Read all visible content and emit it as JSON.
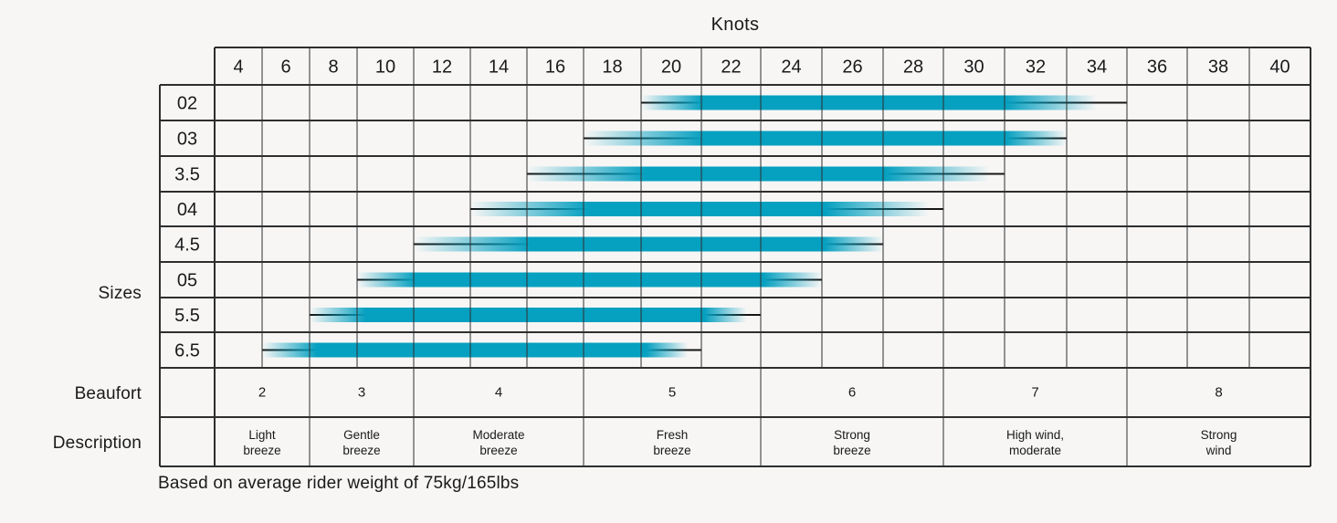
{
  "title": "Knots",
  "side_labels": {
    "sizes": "Sizes",
    "beaufort": "Beaufort",
    "description": "Description"
  },
  "footer_note": "Based on average rider weight of 75kg/165lbs",
  "colors": {
    "bar_teal": "#06a0c0",
    "range_line": "#161616",
    "grid_line": "#2e2e2e",
    "background": "#f7f6f5",
    "text": "#1a1a1a"
  },
  "chart_data": {
    "type": "bar",
    "subtype": "horizontal-range-table",
    "x_axis_title": "Knots",
    "x_tick_labels": [
      "4",
      "6",
      "8",
      "10",
      "12",
      "14",
      "16",
      "18",
      "20",
      "22",
      "24",
      "26",
      "28",
      "30",
      "32",
      "34",
      "36",
      "38",
      "40"
    ],
    "x_range_knots": [
      3,
      41
    ],
    "y_axis_title": "Sizes",
    "categories": [
      "02",
      "03",
      "3.5",
      "04",
      "4.5",
      "05",
      "5.5",
      "6.5"
    ],
    "series": [
      {
        "size": "02",
        "min_knots": 19,
        "max_knots": 35,
        "solid_from": 21,
        "solid_to": 31,
        "fade_to": 34
      },
      {
        "size": "03",
        "min_knots": 17,
        "max_knots": 33,
        "solid_from": 21,
        "solid_to": 31,
        "fade_to": 33
      },
      {
        "size": "3.5",
        "min_knots": 15,
        "max_knots": 31,
        "solid_from": 19,
        "solid_to": 27,
        "fade_to": 30.5
      },
      {
        "size": "04",
        "min_knots": 13,
        "max_knots": 29,
        "solid_from": 17,
        "solid_to": 25,
        "fade_to": 28.5
      },
      {
        "size": "4.5",
        "min_knots": 11,
        "max_knots": 27,
        "solid_from": 15,
        "solid_to": 25,
        "fade_to": 27
      },
      {
        "size": "05",
        "min_knots": 9,
        "max_knots": 25,
        "solid_from": 11,
        "solid_to": 23,
        "fade_to": 25
      },
      {
        "size": "5.5",
        "min_knots": 7,
        "max_knots": 23,
        "solid_from": 9,
        "solid_to": 21,
        "fade_to": 22.5
      },
      {
        "size": "6.5",
        "min_knots": 5,
        "max_knots": 21,
        "solid_from": 7,
        "solid_to": 19,
        "fade_to": 20.5
      }
    ],
    "beaufort_rows": [
      {
        "scale": "2",
        "description_lines": [
          "Light",
          "breeze"
        ],
        "span_cols": [
          4,
          6
        ]
      },
      {
        "scale": "3",
        "description_lines": [
          "Gentle",
          "breeze"
        ],
        "span_cols": [
          8,
          10
        ]
      },
      {
        "scale": "4",
        "description_lines": [
          "Moderate",
          "breeze"
        ],
        "span_cols": [
          12,
          16
        ]
      },
      {
        "scale": "5",
        "description_lines": [
          "Fresh",
          "breeze"
        ],
        "span_cols": [
          18,
          22
        ]
      },
      {
        "scale": "6",
        "description_lines": [
          "Strong",
          "breeze"
        ],
        "span_cols": [
          24,
          28
        ]
      },
      {
        "scale": "7",
        "description_lines": [
          "High wind,",
          "moderate"
        ],
        "span_cols": [
          30,
          34
        ]
      },
      {
        "scale": "8",
        "description_lines": [
          "Strong",
          "wind"
        ],
        "span_cols": [
          36,
          40
        ]
      }
    ],
    "legend": null,
    "grid": true
  }
}
